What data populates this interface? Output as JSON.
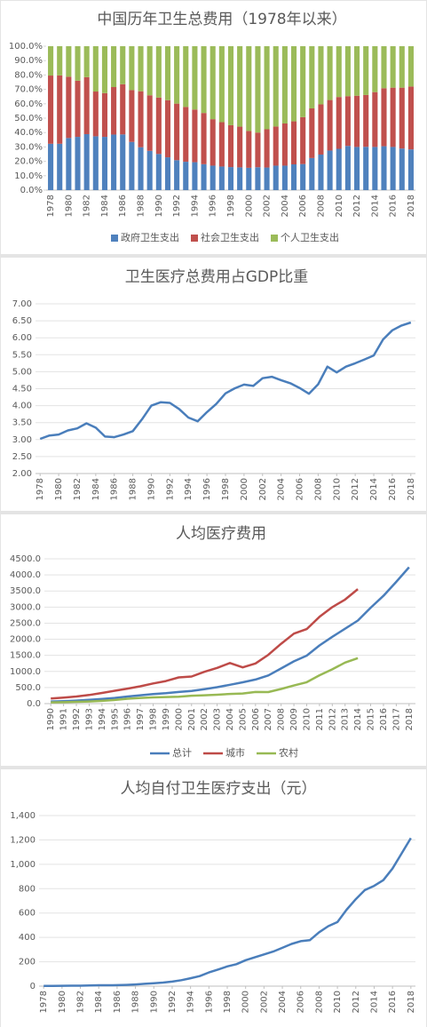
{
  "chart_data": [
    {
      "type": "bar",
      "stacked": true,
      "title": "中国历年卫生总费用（1978年以来）",
      "categories": [
        "1978",
        null,
        "1980",
        null,
        "1982",
        null,
        "1984",
        null,
        "1986",
        null,
        "1988",
        null,
        "1990",
        null,
        "1992",
        null,
        "1994",
        null,
        "1996",
        null,
        "1998",
        null,
        "2000",
        null,
        "2002",
        null,
        "2004",
        null,
        "2006",
        null,
        "2008",
        null,
        "2010",
        null,
        "2012",
        null,
        "2014",
        null,
        "2016",
        null,
        "2018"
      ],
      "series": [
        {
          "name": "政府卫生支出",
          "color": "#4f81bd",
          "values": [
            32.2,
            32.2,
            36.2,
            37.0,
            38.9,
            37.4,
            37.0,
            38.6,
            38.7,
            33.5,
            29.8,
            27.3,
            25.1,
            22.8,
            20.8,
            19.7,
            19.4,
            18.0,
            17.0,
            16.4,
            16.0,
            15.8,
            15.5,
            15.9,
            15.7,
            17.0,
            17.0,
            17.9,
            18.1,
            22.3,
            24.7,
            27.5,
            28.7,
            30.7,
            30.0,
            30.1,
            30.0,
            30.5,
            30.0,
            28.9,
            28.3
          ]
        },
        {
          "name": "社会卫生支出",
          "color": "#c0504d",
          "values": [
            47.4,
            47.5,
            42.6,
            39.0,
            39.6,
            31.1,
            30.4,
            33.0,
            34.9,
            36.0,
            38.9,
            38.6,
            39.2,
            39.7,
            39.3,
            38.1,
            36.6,
            35.6,
            32.3,
            30.8,
            29.1,
            28.3,
            25.6,
            24.1,
            26.6,
            27.2,
            29.3,
            29.9,
            32.6,
            34.5,
            34.9,
            35.1,
            36.0,
            34.6,
            35.6,
            36.0,
            38.1,
            40.3,
            41.2,
            42.3,
            43.7
          ]
        },
        {
          "name": "个人卫生支出",
          "color": "#9bbb59",
          "values": [
            20.4,
            20.3,
            21.2,
            24.0,
            21.5,
            31.5,
            32.6,
            28.4,
            26.4,
            30.5,
            31.3,
            34.1,
            35.7,
            37.5,
            39.9,
            42.2,
            44.0,
            46.4,
            50.7,
            52.8,
            54.9,
            55.9,
            58.9,
            60.0,
            57.7,
            55.8,
            53.7,
            52.2,
            49.3,
            43.2,
            40.4,
            37.4,
            35.3,
            34.7,
            34.4,
            33.9,
            31.9,
            29.2,
            28.8,
            28.8,
            28.0
          ]
        }
      ],
      "ylim": [
        0,
        100
      ],
      "yticks": [
        {
          "value": 0,
          "label": "0.0%"
        },
        {
          "value": 10,
          "label": "10.0%"
        },
        {
          "value": 20,
          "label": "20.0%"
        },
        {
          "value": 30,
          "label": "30.0%"
        },
        {
          "value": 40,
          "label": "40.0%"
        },
        {
          "value": 50,
          "label": "50.0%"
        },
        {
          "value": 60,
          "label": "60.0%"
        },
        {
          "value": 70,
          "label": "70.0%"
        },
        {
          "value": 80,
          "label": "80.0%"
        },
        {
          "value": 90,
          "label": "90.0%"
        },
        {
          "value": 100,
          "label": "100.0%"
        }
      ],
      "grid": false,
      "legend": "bottom"
    },
    {
      "type": "line",
      "title": "卫生医疗总费用占GDP比重",
      "color": "#4a7ebb",
      "x": [
        1978,
        1979,
        1980,
        1981,
        1982,
        1983,
        1984,
        1985,
        1986,
        1987,
        1988,
        1989,
        1990,
        1991,
        1992,
        1993,
        1994,
        1995,
        1996,
        1997,
        1998,
        1999,
        2000,
        2001,
        2002,
        2003,
        2004,
        2005,
        2006,
        2007,
        2008,
        2009,
        2010,
        2011,
        2012,
        2013,
        2014,
        2015,
        2016,
        2017,
        2018
      ],
      "values": [
        3.02,
        3.12,
        3.15,
        3.27,
        3.33,
        3.48,
        3.35,
        3.09,
        3.07,
        3.15,
        3.25,
        3.6,
        4.0,
        4.1,
        4.08,
        3.9,
        3.65,
        3.54,
        3.81,
        4.05,
        4.36,
        4.51,
        4.62,
        4.58,
        4.81,
        4.85,
        4.75,
        4.66,
        4.52,
        4.35,
        4.63,
        5.15,
        4.98,
        5.15,
        5.25,
        5.36,
        5.48,
        5.95,
        6.22,
        6.36,
        6.45
      ],
      "xlim": [
        1977.5,
        2018.5
      ],
      "xticks": [
        1978,
        1980,
        1982,
        1984,
        1986,
        1988,
        1990,
        1992,
        1994,
        1996,
        1998,
        2000,
        2002,
        2004,
        2006,
        2008,
        2010,
        2012,
        2014,
        2016,
        2018
      ],
      "ylim": [
        2,
        7
      ],
      "yticks": [
        {
          "value": 2,
          "label": "2.00"
        },
        {
          "value": 2.5,
          "label": "2.50"
        },
        {
          "value": 3,
          "label": "3.00"
        },
        {
          "value": 3.5,
          "label": "3.50"
        },
        {
          "value": 4,
          "label": "4.00"
        },
        {
          "value": 4.5,
          "label": "4.50"
        },
        {
          "value": 5,
          "label": "5.00"
        },
        {
          "value": 5.5,
          "label": "5.50"
        },
        {
          "value": 6,
          "label": "6.00"
        },
        {
          "value": 6.5,
          "label": "6.50"
        },
        {
          "value": 7,
          "label": "7.00"
        }
      ],
      "grid": true
    },
    {
      "type": "line",
      "title": "人均医疗费用",
      "x": [
        1990,
        1991,
        1992,
        1993,
        1994,
        1995,
        1996,
        1997,
        1998,
        1999,
        2000,
        2001,
        2002,
        2003,
        2004,
        2005,
        2006,
        2007,
        2008,
        2009,
        2010,
        2011,
        2012,
        2013,
        2014,
        2015,
        2016,
        2017,
        2018
      ],
      "series": [
        {
          "name": "总计",
          "color": "#4a7ebb",
          "values": [
            65.4,
            77.1,
            93.6,
            116.3,
            146.9,
            177.9,
            221.4,
            258.6,
            294.9,
            321.8,
            361.9,
            393.8,
            450.7,
            509.5,
            583.9,
            662.3,
            748.8,
            876.0,
            1094.5,
            1314.3,
            1490.1,
            1807.0,
            2076.7,
            2327.4,
            2581.7,
            2980.8,
            3351.7,
            3783.8,
            4237.0
          ]
        },
        {
          "name": "城市",
          "color": "#be4b48",
          "values": [
            158.8,
            187.6,
            222.0,
            268.6,
            332.6,
            401.3,
            467.4,
            537.8,
            625.9,
            702.0,
            813.7,
            841.2,
            987.1,
            1108.9,
            1261.9,
            1126.4,
            1248.3,
            1516.3,
            1861.8,
            2176.6,
            2315.5,
            2697.5,
            2999.3,
            3234.1,
            3558.3,
            null,
            null,
            null,
            null
          ]
        },
        {
          "name": "农村",
          "color": "#98b954",
          "values": [
            38.8,
            45.1,
            54.7,
            67.6,
            86.3,
            112.9,
            150.7,
            177.9,
            194.6,
            203.2,
            214.7,
            244.8,
            259.3,
            274.7,
            301.6,
            315.8,
            361.9,
            358.1,
            455.2,
            562.0,
            666.3,
            879.4,
            1064.8,
            1274.4,
            1412.2,
            null,
            null,
            null,
            null
          ]
        }
      ],
      "xlim": [
        1989.5,
        2018.5
      ],
      "xticks": [
        1990,
        1991,
        1992,
        1993,
        1994,
        1995,
        1996,
        1997,
        1998,
        1999,
        2000,
        2001,
        2002,
        2003,
        2004,
        2005,
        2006,
        2007,
        2008,
        2009,
        2010,
        2011,
        2012,
        2013,
        2014,
        2015,
        2016,
        2017,
        2018
      ],
      "ylim": [
        0,
        4500
      ],
      "yticks": [
        {
          "value": 0,
          "label": "0.0"
        },
        {
          "value": 500,
          "label": "500.0"
        },
        {
          "value": 1000,
          "label": "1000.0"
        },
        {
          "value": 1500,
          "label": "1500.0"
        },
        {
          "value": 2000,
          "label": "2000.0"
        },
        {
          "value": 2500,
          "label": "2500.0"
        },
        {
          "value": 3000,
          "label": "3000.0"
        },
        {
          "value": 3500,
          "label": "3500.0"
        },
        {
          "value": 4000,
          "label": "4000.0"
        },
        {
          "value": 4500,
          "label": "4500.0"
        }
      ],
      "grid": true,
      "legend": "bottom"
    },
    {
      "type": "line",
      "title": "人均自付卫生医疗支出（元）",
      "color": "#4a7ebb",
      "x": [
        1978,
        1979,
        1980,
        1981,
        1982,
        1983,
        1984,
        1985,
        1986,
        1987,
        1988,
        1989,
        1990,
        1991,
        1992,
        1993,
        1994,
        1995,
        1996,
        1997,
        1998,
        1999,
        2000,
        2001,
        2002,
        2003,
        2004,
        2005,
        2006,
        2007,
        2008,
        2009,
        2010,
        2011,
        2012,
        2013,
        2014,
        2015,
        2016,
        2017,
        2018
      ],
      "values": [
        2.3,
        2.5,
        3.1,
        3.5,
        3.7,
        6.0,
        7.5,
        7.4,
        7.7,
        10.0,
        13.8,
        18.6,
        23.3,
        28.9,
        37.3,
        49.0,
        64.6,
        82.5,
        112,
        136.5,
        162,
        180,
        213,
        236,
        260,
        284,
        314,
        346,
        369,
        378,
        442,
        492,
        526,
        627,
        714,
        789,
        823,
        870,
        965,
        1090,
        1215
      ],
      "xlim": [
        1977.5,
        2018.5
      ],
      "xticks": [
        1978,
        1980,
        1982,
        1984,
        1986,
        1988,
        1990,
        1992,
        1994,
        1996,
        1998,
        2000,
        2002,
        2004,
        2006,
        2008,
        2010,
        2012,
        2014,
        2016,
        2018
      ],
      "ylim": [
        0,
        1400
      ],
      "yticks": [
        0,
        200,
        400,
        600,
        800,
        {
          "value": 1000,
          "label": "1,000"
        },
        {
          "value": 1200,
          "label": "1,200"
        },
        {
          "value": 1400,
          "label": "1,400"
        }
      ],
      "grid": true
    }
  ]
}
